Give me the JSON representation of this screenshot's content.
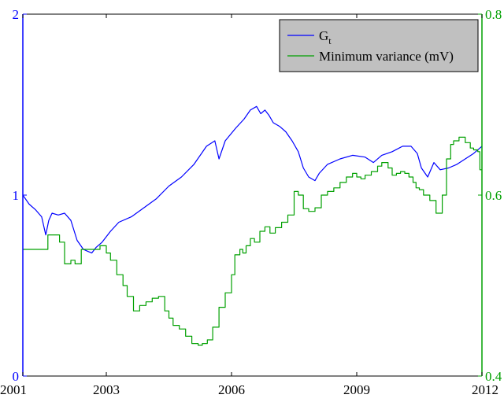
{
  "chart_data": {
    "type": "line",
    "title": "",
    "xlabel": "",
    "x_ticks": [
      "2001",
      "2003",
      "2006",
      "2009",
      "2012"
    ],
    "x_tick_values": [
      2001,
      2003,
      2006,
      2009,
      2012
    ],
    "xlim": [
      2001,
      2012
    ],
    "axes": {
      "left": {
        "ylim": [
          0,
          2
        ],
        "ticks": [
          "0",
          "1",
          "2"
        ],
        "tick_values": [
          0,
          1,
          2
        ],
        "color": "#0000ff"
      },
      "right": {
        "ylim": [
          0.4,
          0.8
        ],
        "ticks": [
          "0.4",
          "0.6",
          "0.8"
        ],
        "tick_values": [
          0.4,
          0.6,
          0.8
        ],
        "color": "#00a000"
      }
    },
    "grid": false,
    "legend": {
      "placement": "top-right",
      "background": "#c0c0c0"
    },
    "series": [
      {
        "name": "G",
        "name_subscript": "t",
        "axis": "left",
        "color": "#0000ff",
        "style": "line",
        "x": [
          2001.0,
          2001.15,
          2001.3,
          2001.45,
          2001.55,
          2001.62,
          2001.7,
          2001.85,
          2002.0,
          2002.15,
          2002.3,
          2002.45,
          2002.55,
          2002.65,
          2002.75,
          2002.9,
          2003.1,
          2003.3,
          2003.6,
          2003.9,
          2004.2,
          2004.5,
          2004.8,
          2005.1,
          2005.4,
          2005.6,
          2005.7,
          2005.85,
          2006.1,
          2006.3,
          2006.45,
          2006.6,
          2006.7,
          2006.8,
          2006.9,
          2007.0,
          2007.15,
          2007.3,
          2007.45,
          2007.6,
          2007.72,
          2007.85,
          2008.0,
          2008.1,
          2008.3,
          2008.6,
          2008.9,
          2009.2,
          2009.4,
          2009.6,
          2009.85,
          2010.1,
          2010.3,
          2010.45,
          2010.55,
          2010.7,
          2010.85,
          2011.0,
          2011.2,
          2011.4,
          2011.6,
          2011.8,
          2012.0
        ],
        "y": [
          1.0,
          0.95,
          0.92,
          0.88,
          0.78,
          0.86,
          0.9,
          0.89,
          0.9,
          0.86,
          0.75,
          0.7,
          0.69,
          0.68,
          0.71,
          0.74,
          0.8,
          0.85,
          0.88,
          0.93,
          0.98,
          1.05,
          1.1,
          1.17,
          1.27,
          1.3,
          1.2,
          1.3,
          1.37,
          1.42,
          1.47,
          1.49,
          1.45,
          1.47,
          1.44,
          1.4,
          1.38,
          1.35,
          1.3,
          1.24,
          1.15,
          1.1,
          1.08,
          1.12,
          1.17,
          1.2,
          1.22,
          1.21,
          1.18,
          1.22,
          1.24,
          1.27,
          1.27,
          1.23,
          1.15,
          1.1,
          1.18,
          1.14,
          1.15,
          1.17,
          1.2,
          1.23,
          1.27
        ]
      },
      {
        "name": "Minimum variance (mV)",
        "axis": "right",
        "color": "#00a000",
        "style": "step",
        "x": [
          2001.0,
          2001.4,
          2001.6,
          2001.75,
          2001.88,
          2002.0,
          2002.15,
          2002.25,
          2002.4,
          2002.55,
          2002.7,
          2002.85,
          2003.0,
          2003.1,
          2003.25,
          2003.4,
          2003.5,
          2003.65,
          2003.8,
          2003.95,
          2004.1,
          2004.25,
          2004.4,
          2004.5,
          2004.6,
          2004.75,
          2004.9,
          2005.05,
          2005.2,
          2005.3,
          2005.42,
          2005.55,
          2005.7,
          2005.85,
          2006.0,
          2006.08,
          2006.2,
          2006.27,
          2006.35,
          2006.45,
          2006.55,
          2006.68,
          2006.8,
          2006.92,
          2007.05,
          2007.2,
          2007.35,
          2007.5,
          2007.6,
          2007.72,
          2007.85,
          2008.0,
          2008.15,
          2008.3,
          2008.45,
          2008.6,
          2008.75,
          2008.9,
          2009.0,
          2009.1,
          2009.2,
          2009.35,
          2009.5,
          2009.6,
          2009.75,
          2009.85,
          2009.95,
          2010.05,
          2010.15,
          2010.25,
          2010.35,
          2010.42,
          2010.5,
          2010.6,
          2010.75,
          2010.9,
          2011.05,
          2011.15,
          2011.25,
          2011.32,
          2011.45,
          2011.6,
          2011.72,
          2011.8,
          2011.9,
          2011.95
        ],
        "y": [
          0.54,
          0.54,
          0.556,
          0.556,
          0.548,
          0.524,
          0.528,
          0.524,
          0.54,
          0.54,
          0.54,
          0.544,
          0.536,
          0.528,
          0.512,
          0.5,
          0.488,
          0.472,
          0.478,
          0.482,
          0.486,
          0.488,
          0.472,
          0.464,
          0.456,
          0.452,
          0.444,
          0.436,
          0.434,
          0.436,
          0.44,
          0.454,
          0.476,
          0.492,
          0.512,
          0.534,
          0.54,
          0.536,
          0.544,
          0.552,
          0.548,
          0.56,
          0.565,
          0.558,
          0.564,
          0.57,
          0.578,
          0.604,
          0.6,
          0.585,
          0.582,
          0.586,
          0.6,
          0.604,
          0.608,
          0.614,
          0.62,
          0.624,
          0.62,
          0.618,
          0.622,
          0.626,
          0.632,
          0.636,
          0.63,
          0.622,
          0.624,
          0.626,
          0.624,
          0.62,
          0.614,
          0.608,
          0.606,
          0.6,
          0.594,
          0.58,
          0.6,
          0.64,
          0.656,
          0.66,
          0.664,
          0.658,
          0.652,
          0.65,
          0.648,
          0.628
        ]
      }
    ]
  }
}
